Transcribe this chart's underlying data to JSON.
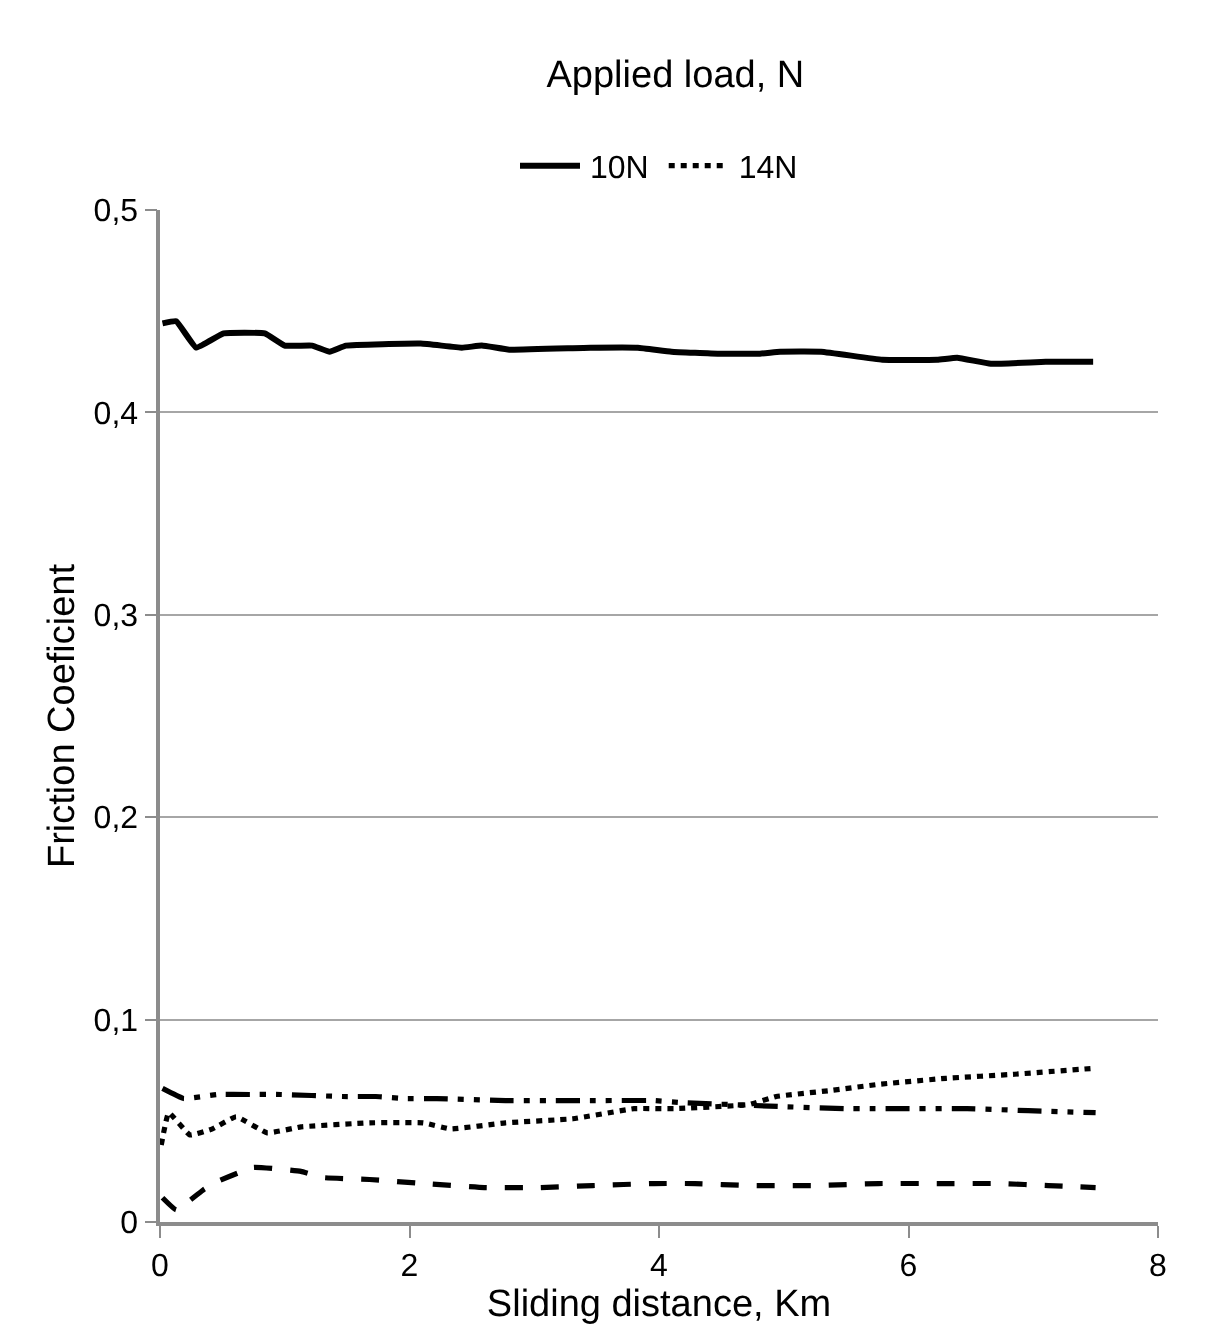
{
  "chart_data": {
    "type": "line",
    "title": "Applied load, N",
    "xlabel": "Sliding distance, Km",
    "ylabel": "Friction Coeficient",
    "xlim": [
      0,
      8
    ],
    "xticks": [
      0,
      2,
      4,
      6,
      8
    ],
    "ylim": [
      0,
      0.5
    ],
    "yticks": [
      0,
      {
        "value": 0.1,
        "label": "0,1"
      },
      {
        "value": 0.2,
        "label": "0,2"
      },
      {
        "value": 0.3,
        "label": "0,3"
      },
      {
        "value": 0.4,
        "label": "0,4"
      },
      {
        "value": 0.5,
        "label": "0,5"
      }
    ],
    "grid": "y",
    "legend": "top",
    "marker": "none",
    "series": [
      {
        "name": "10N",
        "color": "#000000",
        "line_style": "solid",
        "x": [
          0.02,
          0.13,
          0.29,
          0.51,
          0.84,
          1.0,
          1.22,
          1.36,
          1.49,
          2.09,
          2.42,
          2.58,
          2.8,
          3.45,
          3.83,
          4.1,
          4.48,
          4.81,
          4.97,
          5.3,
          5.79,
          6.23,
          6.39,
          6.66,
          7.1,
          7.48
        ],
        "values": [
          0.444,
          0.445,
          0.432,
          0.439,
          0.439,
          0.433,
          0.433,
          0.43,
          0.433,
          0.434,
          0.432,
          0.433,
          0.431,
          0.432,
          0.432,
          0.43,
          0.429,
          0.429,
          0.43,
          0.43,
          0.426,
          0.426,
          0.427,
          0.424,
          0.425,
          0.425
        ]
      },
      {
        "name": "14N",
        "color": "#000000",
        "line_style": "dotted",
        "x": [
          0.01,
          0.07,
          0.24,
          0.42,
          0.61,
          0.86,
          1.13,
          1.68,
          2.11,
          2.33,
          2.77,
          3.31,
          3.8,
          4.12,
          4.72,
          4.94,
          5.38,
          5.76,
          6.3,
          6.85,
          7.5
        ],
        "values": [
          0.038,
          0.054,
          0.043,
          0.046,
          0.052,
          0.044,
          0.047,
          0.049,
          0.049,
          0.046,
          0.049,
          0.051,
          0.056,
          0.056,
          0.058,
          0.062,
          0.065,
          0.068,
          0.071,
          0.073,
          0.076
        ]
      },
      {
        "color": "#000000",
        "line_style": "dashdot",
        "x": [
          0.02,
          0.19,
          0.46,
          0.72,
          0.97,
          1.46,
          1.73,
          1.97,
          2.22,
          2.77,
          3.2,
          3.47,
          3.96,
          4.18,
          5.0,
          5.49,
          5.71,
          5.98,
          6.47,
          6.96,
          7.5
        ],
        "values": [
          0.066,
          0.061,
          0.063,
          0.063,
          0.063,
          0.062,
          0.062,
          0.061,
          0.061,
          0.06,
          0.06,
          0.06,
          0.06,
          0.059,
          0.057,
          0.056,
          0.056,
          0.056,
          0.056,
          0.055,
          0.054
        ]
      },
      {
        "color": "#000000",
        "line_style": "dashed",
        "x": [
          0.02,
          0.13,
          0.35,
          0.46,
          0.75,
          1.13,
          1.3,
          1.68,
          2.11,
          2.6,
          3.04,
          3.47,
          3.96,
          4.29,
          4.72,
          5.27,
          5.76,
          6.3,
          6.74,
          7.12,
          7.5
        ],
        "values": [
          0.012,
          0.006,
          0.016,
          0.02,
          0.027,
          0.025,
          0.022,
          0.021,
          0.019,
          0.017,
          0.017,
          0.018,
          0.019,
          0.019,
          0.018,
          0.018,
          0.019,
          0.019,
          0.019,
          0.018,
          0.017
        ]
      }
    ]
  }
}
